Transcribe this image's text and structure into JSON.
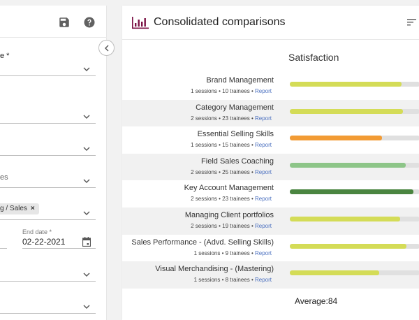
{
  "left_panel": {
    "fields": [
      {
        "label": "e *",
        "value": ""
      },
      {
        "label": "",
        "value": ""
      },
      {
        "label": "",
        "value": ""
      },
      {
        "label": "",
        "value": "es"
      },
      {
        "label": "",
        "chip": "g / Sales",
        "chip_remove": "×"
      }
    ],
    "end_date": {
      "label": "End date *",
      "value": "02-22-2021"
    },
    "extra_fields": [
      {
        "value": ""
      },
      {
        "value": ""
      }
    ]
  },
  "card": {
    "title": "Consolidated comparisons",
    "metric_title": "Satisfaction",
    "average_label": "Average:84",
    "report_label": "Report",
    "accent_color": "#7b1245"
  },
  "chart_data": {
    "type": "bar",
    "title": "Satisfaction",
    "categories": [
      "Brand Management",
      "Category Management",
      "Essential Selling Skills",
      "Field Sales Coaching",
      "Key Account Management",
      "Managing Client portfolios",
      "Sales Performance - (Advd. Selling Skills)",
      "Visual Merchandising - (Mastering)"
    ],
    "values": [
      86,
      87,
      71,
      89,
      95,
      85,
      90,
      69
    ],
    "xlim": [
      0,
      100
    ],
    "average": 84,
    "rows": [
      {
        "name": "Brand Management",
        "meta": "1 sessions • 10 trainees • ",
        "value": 86,
        "color": "#d4dc57"
      },
      {
        "name": "Category Management",
        "meta": "2 sessions • 23 trainees • ",
        "value": 87,
        "color": "#d4dc57"
      },
      {
        "name": "Essential Selling Skills",
        "meta": "1 sessions • 15 trainees • ",
        "value": 71,
        "color": "#f29b34"
      },
      {
        "name": "Field Sales Coaching",
        "meta": "2 sessions • 25 trainees • ",
        "value": 89,
        "color": "#8dc588"
      },
      {
        "name": "Key Account Management",
        "meta": "2 sessions • 23 trainees • ",
        "value": 95,
        "color": "#4a8540"
      },
      {
        "name": "Managing Client portfolios",
        "meta": "2 sessions • 19 trainees • ",
        "value": 85,
        "color": "#d4dc57"
      },
      {
        "name": "Sales Performance - (Advd. Selling Skills)",
        "meta": "1 sessions • 9 trainees • ",
        "value": 90,
        "color": "#d4dc57"
      },
      {
        "name": "Visual Merchandising - (Mastering)",
        "meta": "1 sessions • 8 trainees • ",
        "value": 69,
        "color": "#d4dc57"
      }
    ]
  }
}
